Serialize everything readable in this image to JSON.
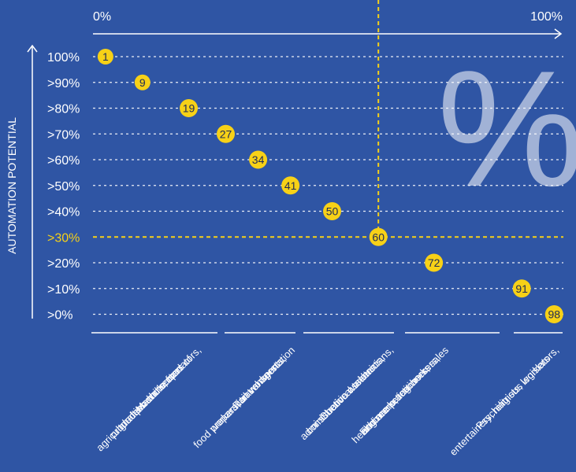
{
  "chart_data": {
    "type": "scatter",
    "title": "",
    "xlabel": "",
    "ylabel": "AUTOMATION POTENTIAL",
    "x_axis": {
      "start_label": "0%",
      "end_label": "100%",
      "range": [
        0,
        100
      ]
    },
    "y_tick_labels": [
      "100%",
      ">90%",
      ">80%",
      ">70%",
      ">60%",
      ">50%",
      ">40%",
      ">30%",
      ">20%",
      ">10%",
      ">0%"
    ],
    "highlight_y_label": ">30%",
    "points": [
      {
        "x": 1,
        "y_label": "100%",
        "label": "1"
      },
      {
        "x": 9,
        "y_label": ">90%",
        "label": "9"
      },
      {
        "x": 19,
        "y_label": ">80%",
        "label": "19"
      },
      {
        "x": 27,
        "y_label": ">70%",
        "label": "27"
      },
      {
        "x": 34,
        "y_label": ">60%",
        "label": "34"
      },
      {
        "x": 41,
        "y_label": ">50%",
        "label": "41"
      },
      {
        "x": 50,
        "y_label": ">40%",
        "label": "50"
      },
      {
        "x": 60,
        "y_label": ">30%",
        "label": "60",
        "highlight": true
      },
      {
        "x": 72,
        "y_label": ">20%",
        "label": "72"
      },
      {
        "x": 91,
        "y_label": ">10%",
        "label": "91"
      },
      {
        "x": 98,
        "y_label": ">0%",
        "label": "98"
      }
    ],
    "groups": [
      {
        "lines": [
          "Machine operators,",
          "graders and sorters of",
          "agricultural products, food",
          "production workers"
        ]
      },
      {
        "lines": [
          "Rail transportation",
          "workers, travel agents,",
          "food preparation workers"
        ]
      },
      {
        "lines": [
          "Chemical technicians,",
          "administrative assistants,",
          "construction workers"
        ]
      },
      {
        "lines": [
          "Engineers, teachers, sales",
          "and marketing workers,",
          "healthcare practitioners"
        ]
      },
      {
        "lines": [
          "Psychiatrists, legislators,",
          "entertainers, religious workers"
        ]
      }
    ],
    "watermark": "%",
    "grid": true,
    "colors": {
      "background": "#2f55a4",
      "marker": "#f7d117",
      "marker_text": "#1f2a55",
      "highlight": "#f7d117",
      "text": "#ffffff",
      "watermark": "#8aa3d6"
    }
  }
}
